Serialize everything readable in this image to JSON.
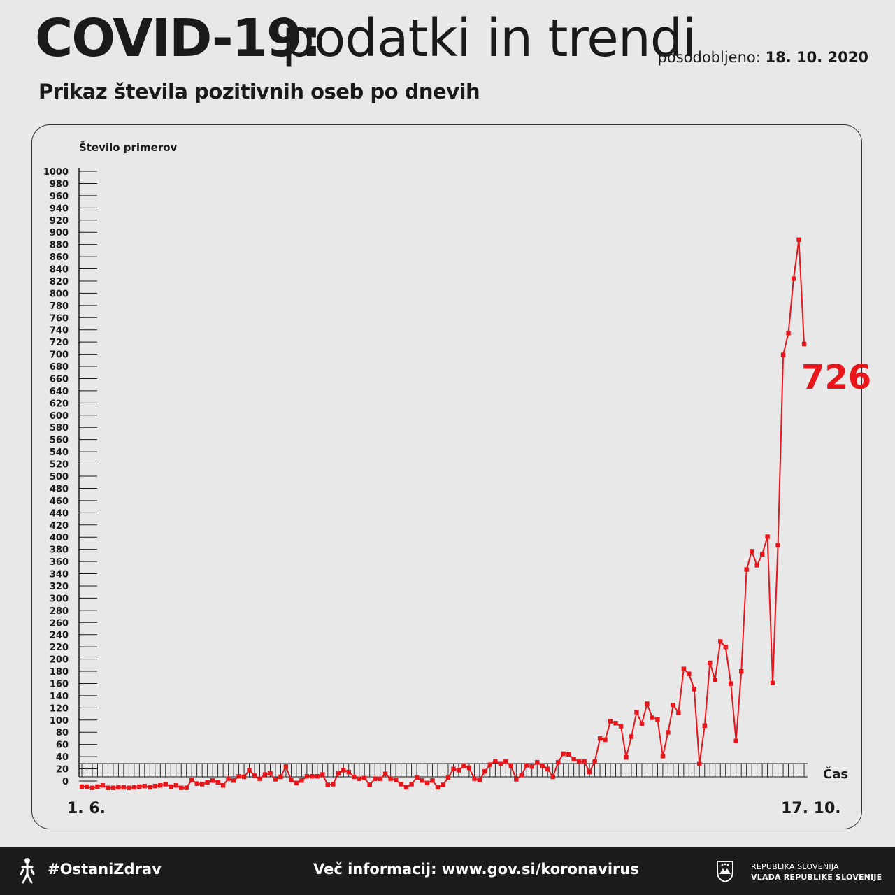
{
  "header": {
    "title_strong": "COVID-19:",
    "title_light": "podatki in trendi",
    "updated_label": "posodobljeno:",
    "updated_date": "18. 10. 2020",
    "subtitle": "Prikaz števila pozitivnih oseb po dnevih"
  },
  "chart_data": {
    "type": "line",
    "ylabel": "Število primerov",
    "xlabel": "Čas",
    "x_start_label": "1. 6.",
    "x_end_label": "17. 10.",
    "ylim": [
      0,
      1000
    ],
    "y_tick_step": 20,
    "line_color": "#e8161b",
    "callout_value": "726",
    "series": [
      {
        "values": [
          0,
          0,
          -2,
          0,
          2,
          -2,
          -2,
          -1,
          -1,
          -2,
          -1,
          0,
          1,
          -1,
          1,
          2,
          4,
          0,
          2,
          -2,
          -2,
          11,
          5,
          4,
          7,
          10,
          7,
          2,
          13,
          10,
          17,
          16,
          27,
          18,
          13,
          20,
          22,
          12,
          16,
          33,
          11,
          6,
          10,
          17,
          17,
          17,
          20,
          3,
          4,
          22,
          27,
          24,
          16,
          13,
          14,
          3,
          13,
          13,
          21,
          13,
          11,
          4,
          -1,
          4,
          15,
          10,
          6,
          10,
          -1,
          3,
          15,
          29,
          27,
          34,
          31,
          13,
          11,
          25,
          36,
          42,
          37,
          41,
          34,
          12,
          19,
          35,
          33,
          40,
          34,
          29,
          16,
          40,
          54,
          53,
          45,
          41,
          41,
          24,
          41,
          79,
          77,
          107,
          104,
          99,
          48,
          82,
          122,
          103,
          136,
          113,
          110,
          50,
          89,
          134,
          121,
          193,
          185,
          160,
          37,
          100,
          203,
          175,
          238,
          229,
          169,
          75,
          189,
          356,
          386,
          363,
          381,
          410,
          170,
          396,
          708,
          744,
          833,
          897,
          726
        ]
      }
    ]
  },
  "footer": {
    "hashtag": "#OstaniZdrav",
    "more_info": "Več informacij: www.gov.si/koronavirus",
    "gov_line1": "REPUBLIKA SLOVENIJA",
    "gov_line2": "VLADA REPUBLIKE SLOVENIJE",
    "left_icon": "figure-icon",
    "right_icon": "coat-of-arms-icon"
  }
}
